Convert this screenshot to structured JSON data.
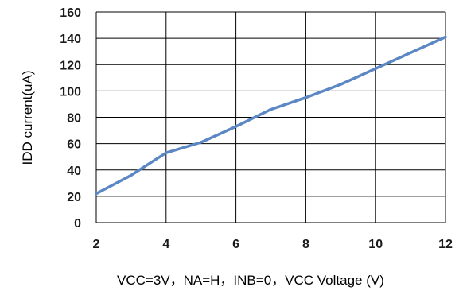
{
  "chart_data": {
    "type": "line",
    "title": "",
    "xlabel": "VCC=3V，NA=H，INB=0，VCC Voltage (V)",
    "ylabel": "IDD current(uA)",
    "xlim": [
      2,
      12
    ],
    "ylim": [
      0,
      160
    ],
    "x_ticks": [
      "2",
      "4",
      "6",
      "8",
      "10",
      "12"
    ],
    "y_ticks": [
      "0",
      "20",
      "40",
      "60",
      "80",
      "100",
      "120",
      "140",
      "160"
    ],
    "grid": true,
    "legend": "none",
    "line_color": "#5B87C4",
    "series": [
      {
        "x": [
          2,
          3,
          4,
          5,
          6,
          7,
          8,
          9,
          10,
          11,
          12
        ],
        "values": [
          22,
          36,
          53,
          61,
          73,
          86,
          95,
          105,
          117,
          129,
          141
        ]
      }
    ]
  }
}
